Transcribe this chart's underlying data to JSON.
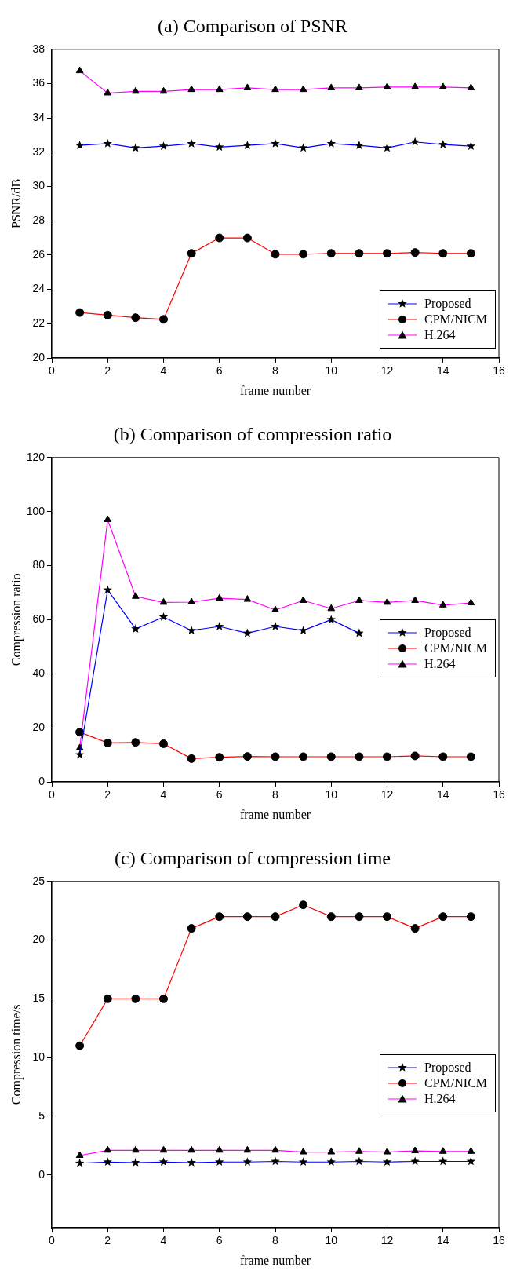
{
  "chart_data": [
    {
      "type": "line",
      "title": "(a) Comparison of PSNR",
      "xlabel": "frame number",
      "ylabel": "PSNR/dB",
      "x": [
        1,
        2,
        3,
        4,
        5,
        6,
        7,
        8,
        9,
        10,
        11,
        12,
        13,
        14,
        15
      ],
      "xlim": [
        0,
        16
      ],
      "xticks": [
        0,
        2,
        4,
        6,
        8,
        10,
        12,
        14,
        16
      ],
      "ylim": [
        20,
        38
      ],
      "yticks": [
        20,
        22,
        24,
        26,
        28,
        30,
        32,
        34,
        36,
        38
      ],
      "grid": false,
      "legend": "bottom right",
      "series": [
        {
          "name": "Proposed",
          "color": "#0000ff",
          "marker": "star",
          "values": [
            32.4,
            32.5,
            32.25,
            32.35,
            32.5,
            32.3,
            32.4,
            32.5,
            32.25,
            32.5,
            32.4,
            32.25,
            32.6,
            32.45,
            32.35
          ]
        },
        {
          "name": "CPM/NICM",
          "color": "#ff0000",
          "marker": "circle",
          "values": [
            22.65,
            22.5,
            22.35,
            22.25,
            26.1,
            27,
            27,
            26.05,
            26.05,
            26.1,
            26.1,
            26.1,
            26.15,
            26.1,
            26.1
          ]
        },
        {
          "name": "H.264",
          "color": "#ff00ff",
          "marker": "triangle",
          "values": [
            36.75,
            35.45,
            35.55,
            35.55,
            35.65,
            35.65,
            35.75,
            35.65,
            35.65,
            35.75,
            35.75,
            35.8,
            35.8,
            35.8,
            35.75
          ]
        }
      ]
    },
    {
      "type": "line",
      "title": "(b) Comparison of compression ratio",
      "xlabel": "frame number",
      "ylabel": "Compression ratio",
      "x": [
        1,
        2,
        3,
        4,
        5,
        6,
        7,
        8,
        9,
        10,
        11,
        12,
        13,
        14,
        15
      ],
      "xlim": [
        0,
        16
      ],
      "xticks": [
        0,
        2,
        4,
        6,
        8,
        10,
        12,
        14,
        16
      ],
      "ylim": [
        0,
        120
      ],
      "yticks": [
        0,
        20,
        40,
        60,
        80,
        100,
        120
      ],
      "grid": false,
      "legend": "right",
      "series": [
        {
          "name": "Proposed",
          "color": "#0000ff",
          "marker": "star",
          "values": [
            10,
            71,
            56.6,
            61,
            56,
            57.5,
            55,
            57.5,
            56,
            60,
            55,
            null,
            null,
            null,
            null
          ]
        },
        {
          "name": "CPM/NICM",
          "color": "#ff0000",
          "marker": "circle",
          "values": [
            18.4,
            14.4,
            14.6,
            14.1,
            8.6,
            9.1,
            9.4,
            9.3,
            9.3,
            9.3,
            9.3,
            9.3,
            9.6,
            9.3,
            9.3
          ]
        },
        {
          "name": "H.264",
          "color": "#ff00ff",
          "marker": "triangle",
          "values": [
            12.5,
            97,
            68.6,
            66.4,
            66.5,
            67.9,
            67.5,
            63.6,
            67.1,
            64.1,
            67.1,
            66.4,
            67.1,
            65.4,
            66.2
          ]
        }
      ]
    },
    {
      "type": "line",
      "title": "(c) Comparison of compression time",
      "xlabel": "frame number",
      "ylabel": "Compression time/s",
      "x": [
        1,
        2,
        3,
        4,
        5,
        6,
        7,
        8,
        9,
        10,
        11,
        12,
        13,
        14,
        15
      ],
      "xlim": [
        0,
        16
      ],
      "xticks": [
        0,
        2,
        4,
        6,
        8,
        10,
        12,
        14,
        16
      ],
      "ylim": [
        -4.5,
        25
      ],
      "yticks": [
        0,
        5,
        10,
        15,
        20,
        25
      ],
      "grid": false,
      "legend": "right",
      "series": [
        {
          "name": "Proposed",
          "color": "#0000ff",
          "marker": "star",
          "values": [
            1.0,
            1.1,
            1.05,
            1.1,
            1.05,
            1.1,
            1.1,
            1.15,
            1.1,
            1.1,
            1.15,
            1.1,
            1.15,
            1.15,
            1.15
          ]
        },
        {
          "name": "CPM/NICM",
          "color": "#ff0000",
          "marker": "circle",
          "values": [
            11,
            15,
            15,
            15,
            21,
            22,
            22,
            22,
            23,
            22,
            22,
            22,
            21,
            22,
            22
          ]
        },
        {
          "name": "H.264",
          "color": "#ff00ff",
          "marker": "triangle",
          "values": [
            1.65,
            2.1,
            2.1,
            2.1,
            2.1,
            2.1,
            2.1,
            2.1,
            1.95,
            1.95,
            2.0,
            1.95,
            2.05,
            2.0,
            2.0
          ]
        }
      ]
    }
  ]
}
